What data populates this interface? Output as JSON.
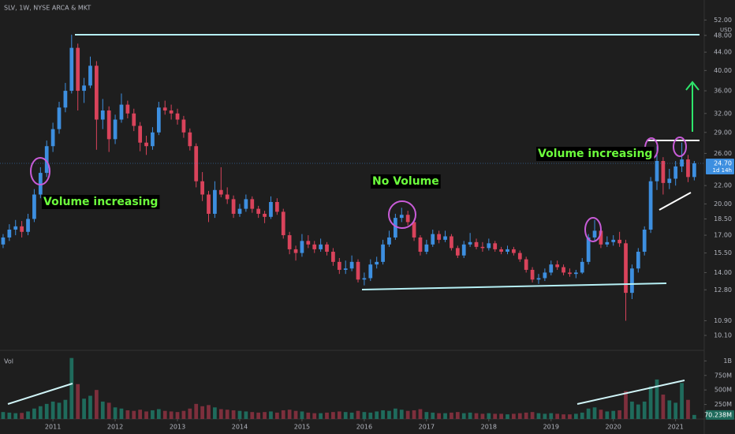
{
  "chart_data": {
    "type": "candlestick",
    "title": "SLV, 1W, NYSE ARCA & MKT",
    "currency": "USD",
    "volume_title": "Vol",
    "log": true,
    "up_color": "#3d8fe0",
    "down_color": "#d9435b",
    "volume_up_color": "#1f6b5c",
    "volume_down_color": "#7d2f3c",
    "annotations": [
      "Volume increasing",
      "No Volume",
      "Volume increasing"
    ],
    "last_price_label": "24.70",
    "countdown": "1d 14h",
    "last_volume_label": "70.238M",
    "xlim": [
      2010.15,
      2021.46
    ],
    "xticks": [
      2011,
      2012,
      2013,
      2014,
      2015,
      2016,
      2017,
      2018,
      2019,
      2020,
      2021
    ],
    "ylim": [
      9.5,
      57.7
    ],
    "yticks": [
      {
        "value": 52,
        "label": "52.00"
      },
      {
        "value": 48,
        "label": "48.00"
      },
      {
        "value": 44,
        "label": "44.00"
      },
      {
        "value": 40,
        "label": "40.00"
      },
      {
        "value": 36,
        "label": "36.00"
      },
      {
        "value": 32,
        "label": "32.00"
      },
      {
        "value": 29,
        "label": "29.00"
      },
      {
        "value": 26,
        "label": "26.00"
      },
      {
        "value": 22,
        "label": "22.00"
      },
      {
        "value": 20,
        "label": "20.00"
      },
      {
        "value": 18.5,
        "label": "18.50"
      },
      {
        "value": 17,
        "label": "17.00"
      },
      {
        "value": 15.5,
        "label": "15.50"
      },
      {
        "value": 14,
        "label": "14.00"
      },
      {
        "value": 12.8,
        "label": "12.80"
      },
      {
        "value": 10.9,
        "label": "10.90"
      },
      {
        "value": 10.1,
        "label": "10.10"
      }
    ],
    "volume_ylim": [
      0,
      1100
    ],
    "volume_yticks": [
      {
        "value": 1000,
        "label": "1B"
      },
      {
        "value": 750,
        "label": "750M"
      },
      {
        "value": 500,
        "label": "500M"
      },
      {
        "value": 250,
        "label": "250M"
      }
    ],
    "x": [
      2010.2,
      2010.3,
      2010.4,
      2010.5,
      2010.6,
      2010.7,
      2010.8,
      2010.9,
      2011.0,
      2011.1,
      2011.2,
      2011.3,
      2011.4,
      2011.5,
      2011.6,
      2011.7,
      2011.8,
      2011.9,
      2012.0,
      2012.1,
      2012.2,
      2012.3,
      2012.4,
      2012.5,
      2012.6,
      2012.7,
      2012.8,
      2012.9,
      2013.0,
      2013.1,
      2013.2,
      2013.3,
      2013.4,
      2013.5,
      2013.6,
      2013.7,
      2013.8,
      2013.9,
      2014.0,
      2014.1,
      2014.2,
      2014.3,
      2014.4,
      2014.5,
      2014.6,
      2014.7,
      2014.8,
      2014.9,
      2015.0,
      2015.1,
      2015.2,
      2015.3,
      2015.4,
      2015.5,
      2015.6,
      2015.7,
      2015.8,
      2015.9,
      2016.0,
      2016.1,
      2016.2,
      2016.3,
      2016.4,
      2016.5,
      2016.6,
      2016.7,
      2016.8,
      2016.9,
      2017.0,
      2017.1,
      2017.2,
      2017.3,
      2017.4,
      2017.5,
      2017.6,
      2017.7,
      2017.8,
      2017.9,
      2018.0,
      2018.1,
      2018.2,
      2018.3,
      2018.4,
      2018.5,
      2018.6,
      2018.7,
      2018.8,
      2018.9,
      2019.0,
      2019.1,
      2019.2,
      2019.3,
      2019.4,
      2019.5,
      2019.6,
      2019.7,
      2019.8,
      2019.9,
      2020.0,
      2020.1,
      2020.2,
      2020.3,
      2020.4,
      2020.5,
      2020.6,
      2020.7,
      2020.8,
      2020.9,
      2021.0,
      2021.1,
      2021.2,
      2021.3
    ],
    "ohlc": [
      [
        16.2,
        17.1,
        15.9,
        16.8
      ],
      [
        16.8,
        18.0,
        16.5,
        17.5
      ],
      [
        17.5,
        18.4,
        17.0,
        17.8
      ],
      [
        17.8,
        18.3,
        16.8,
        17.3
      ],
      [
        17.3,
        19.0,
        17.0,
        18.5
      ],
      [
        18.5,
        21.6,
        18.2,
        21.0
      ],
      [
        21.0,
        24.2,
        20.6,
        23.5
      ],
      [
        23.5,
        27.8,
        23.0,
        27.0
      ],
      [
        27.0,
        30.5,
        26.2,
        29.5
      ],
      [
        29.5,
        34.0,
        28.8,
        33.0
      ],
      [
        33.0,
        37.5,
        32.2,
        36.0
      ],
      [
        36.0,
        48.2,
        35.5,
        45.0
      ],
      [
        45.0,
        46.0,
        32.5,
        36.0
      ],
      [
        36.0,
        38.5,
        33.8,
        37.0
      ],
      [
        37.0,
        43.0,
        36.5,
        41.0
      ],
      [
        41.0,
        42.0,
        26.5,
        31.0
      ],
      [
        31.0,
        34.5,
        29.5,
        32.5
      ],
      [
        32.5,
        33.2,
        26.2,
        28.0
      ],
      [
        28.0,
        31.8,
        27.3,
        31.0
      ],
      [
        31.0,
        35.5,
        30.5,
        33.5
      ],
      [
        33.5,
        34.2,
        31.2,
        32.0
      ],
      [
        32.0,
        32.8,
        29.2,
        30.0
      ],
      [
        30.0,
        30.6,
        26.3,
        27.5
      ],
      [
        27.5,
        28.5,
        25.8,
        27.0
      ],
      [
        27.0,
        29.8,
        26.5,
        29.0
      ],
      [
        29.0,
        34.0,
        28.6,
        33.0
      ],
      [
        33.0,
        34.2,
        31.8,
        32.5
      ],
      [
        32.5,
        33.5,
        31.0,
        32.0
      ],
      [
        32.0,
        32.8,
        30.2,
        31.0
      ],
      [
        31.0,
        31.6,
        28.2,
        29.0
      ],
      [
        29.0,
        29.6,
        26.4,
        27.0
      ],
      [
        27.0,
        27.4,
        21.8,
        22.5
      ],
      [
        22.5,
        23.6,
        20.3,
        21.0
      ],
      [
        21.0,
        21.4,
        18.2,
        19.0
      ],
      [
        19.0,
        22.5,
        18.6,
        21.5
      ],
      [
        21.5,
        24.2,
        20.7,
        21.0
      ],
      [
        21.0,
        21.8,
        20.0,
        20.5
      ],
      [
        20.5,
        20.9,
        18.6,
        19.0
      ],
      [
        19.0,
        20.0,
        18.7,
        19.5
      ],
      [
        19.5,
        21.0,
        19.2,
        20.5
      ],
      [
        20.5,
        20.8,
        19.1,
        19.5
      ],
      [
        19.5,
        19.8,
        18.6,
        19.0
      ],
      [
        19.0,
        19.3,
        18.1,
        18.7
      ],
      [
        18.7,
        20.8,
        18.5,
        20.2
      ],
      [
        20.2,
        20.6,
        18.9,
        19.2
      ],
      [
        19.2,
        19.5,
        16.7,
        17.0
      ],
      [
        17.0,
        17.3,
        15.4,
        15.8
      ],
      [
        15.8,
        16.1,
        14.9,
        15.5
      ],
      [
        15.5,
        17.1,
        15.2,
        16.5
      ],
      [
        16.5,
        17.0,
        15.9,
        16.2
      ],
      [
        16.2,
        16.5,
        15.5,
        15.8
      ],
      [
        15.8,
        16.7,
        15.6,
        16.2
      ],
      [
        16.2,
        16.4,
        15.3,
        15.6
      ],
      [
        15.6,
        15.9,
        14.5,
        14.8
      ],
      [
        14.8,
        15.1,
        13.9,
        14.2
      ],
      [
        14.2,
        14.9,
        13.9,
        14.3
      ],
      [
        14.3,
        15.3,
        14.1,
        14.8
      ],
      [
        14.8,
        15.0,
        13.3,
        13.5
      ],
      [
        13.5,
        14.0,
        13.1,
        13.6
      ],
      [
        13.6,
        15.0,
        13.4,
        14.6
      ],
      [
        14.6,
        15.2,
        14.3,
        14.8
      ],
      [
        14.8,
        16.6,
        14.6,
        16.2
      ],
      [
        16.2,
        17.4,
        16.0,
        16.8
      ],
      [
        16.8,
        19.0,
        16.6,
        18.6
      ],
      [
        18.6,
        19.6,
        18.2,
        18.9
      ],
      [
        18.9,
        19.3,
        17.9,
        18.2
      ],
      [
        18.2,
        18.5,
        16.5,
        16.8
      ],
      [
        16.8,
        17.0,
        15.3,
        15.6
      ],
      [
        15.6,
        16.6,
        15.4,
        16.2
      ],
      [
        16.2,
        17.5,
        16.0,
        17.1
      ],
      [
        17.1,
        17.4,
        16.3,
        16.6
      ],
      [
        16.6,
        17.4,
        16.4,
        16.9
      ],
      [
        16.9,
        17.1,
        15.7,
        15.9
      ],
      [
        15.9,
        16.1,
        15.1,
        15.3
      ],
      [
        15.3,
        16.5,
        15.1,
        16.2
      ],
      [
        16.2,
        17.2,
        16.0,
        16.4
      ],
      [
        16.4,
        16.7,
        15.8,
        16.0
      ],
      [
        16.0,
        16.4,
        15.6,
        15.9
      ],
      [
        15.9,
        16.7,
        15.7,
        16.3
      ],
      [
        16.3,
        16.5,
        15.6,
        15.8
      ],
      [
        15.8,
        16.0,
        15.4,
        15.6
      ],
      [
        15.6,
        16.1,
        15.4,
        15.8
      ],
      [
        15.8,
        16.0,
        15.3,
        15.5
      ],
      [
        15.5,
        15.7,
        14.8,
        15.0
      ],
      [
        15.0,
        15.2,
        14.0,
        14.2
      ],
      [
        14.2,
        14.4,
        13.3,
        13.5
      ],
      [
        13.5,
        13.9,
        13.2,
        13.6
      ],
      [
        13.6,
        14.3,
        13.4,
        14.0
      ],
      [
        14.0,
        14.9,
        13.8,
        14.6
      ],
      [
        14.6,
        14.9,
        14.2,
        14.4
      ],
      [
        14.4,
        14.6,
        13.8,
        14.0
      ],
      [
        14.0,
        14.3,
        13.7,
        13.9
      ],
      [
        13.9,
        14.2,
        13.6,
        14.0
      ],
      [
        14.0,
        15.1,
        13.9,
        14.8
      ],
      [
        14.8,
        17.1,
        14.6,
        16.8
      ],
      [
        16.8,
        18.4,
        16.5,
        17.4
      ],
      [
        17.4,
        17.6,
        15.9,
        16.2
      ],
      [
        16.2,
        16.9,
        16.0,
        16.4
      ],
      [
        16.4,
        17.0,
        16.1,
        16.6
      ],
      [
        16.6,
        17.3,
        16.0,
        16.3
      ],
      [
        16.3,
        16.6,
        10.9,
        12.6
      ],
      [
        12.6,
        14.6,
        12.2,
        14.3
      ],
      [
        14.3,
        15.9,
        14.0,
        15.6
      ],
      [
        15.6,
        17.8,
        15.3,
        17.5
      ],
      [
        17.5,
        23.0,
        17.2,
        22.5
      ],
      [
        22.5,
        27.0,
        21.5,
        25.0
      ],
      [
        25.0,
        25.5,
        21.0,
        22.3
      ],
      [
        22.3,
        24.0,
        21.6,
        22.8
      ],
      [
        22.8,
        25.0,
        22.0,
        24.3
      ],
      [
        24.3,
        27.5,
        23.6,
        25.2
      ],
      [
        25.2,
        25.8,
        22.4,
        23.0
      ],
      [
        23.0,
        25.0,
        22.6,
        24.7
      ]
    ],
    "volumes": [
      120,
      110,
      100,
      105,
      130,
      180,
      220,
      260,
      300,
      280,
      330,
      1050,
      600,
      350,
      400,
      500,
      300,
      280,
      200,
      180,
      150,
      140,
      160,
      130,
      150,
      170,
      140,
      130,
      120,
      140,
      180,
      260,
      220,
      240,
      200,
      170,
      160,
      150,
      140,
      130,
      120,
      110,
      120,
      130,
      110,
      150,
      160,
      140,
      130,
      110,
      100,
      100,
      110,
      120,
      130,
      120,
      110,
      140,
      120,
      110,
      130,
      150,
      140,
      180,
      160,
      140,
      150,
      170,
      120,
      110,
      100,
      100,
      110,
      120,
      100,
      110,
      100,
      90,
      100,
      90,
      90,
      80,
      90,
      100,
      110,
      120,
      100,
      90,
      100,
      90,
      80,
      80,
      90,
      110,
      180,
      200,
      160,
      130,
      140,
      150,
      480,
      300,
      250,
      300,
      560,
      680,
      420,
      320,
      280,
      620,
      330,
      70.238
    ]
  }
}
